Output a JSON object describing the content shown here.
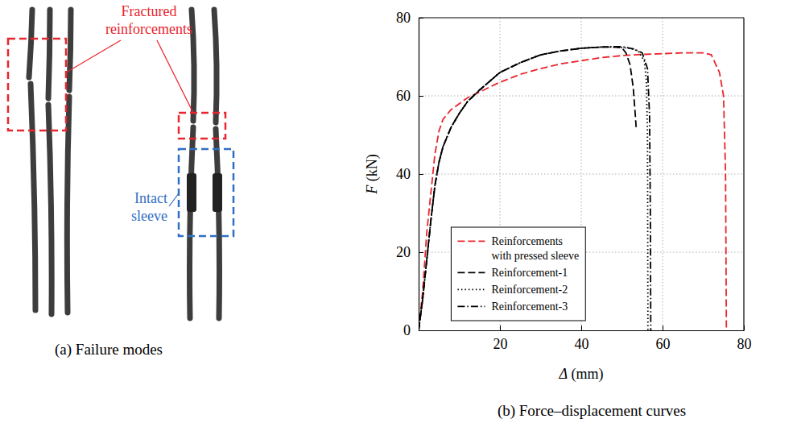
{
  "figure_a": {
    "annotations": [
      "Fractured reinforcements",
      "Intact sleeve"
    ],
    "caption": "(a) Failure modes"
  },
  "chart_data": {
    "type": "line",
    "title": "(b) Force–displacement curves",
    "x_label": "Δ (mm)",
    "y_label": "F (kN)",
    "xlim": [
      0,
      80
    ],
    "ylim": [
      0,
      80
    ],
    "xticks": [
      20,
      40,
      60,
      80
    ],
    "yticks": [
      0,
      20,
      40,
      60,
      80
    ],
    "grid": true,
    "legend": "lower left",
    "series": [
      {
        "name": "Reinforcements with pressed sleeve",
        "color": "#e8262d",
        "line_style": "dashed",
        "x": [
          0,
          1,
          2,
          3,
          4,
          5,
          6,
          8,
          10,
          12,
          15,
          20,
          25,
          30,
          35,
          40,
          45,
          50,
          55,
          60,
          65,
          70,
          72,
          74,
          75,
          75.5,
          75.7
        ],
        "values": [
          0,
          10,
          25,
          35,
          45,
          51,
          54,
          56.5,
          58,
          59.5,
          61,
          63.5,
          65.5,
          67,
          68.2,
          69,
          69.8,
          70.3,
          70.6,
          70.8,
          71,
          71,
          70.5,
          66,
          60,
          40,
          0
        ]
      },
      {
        "name": "Reinforcement-1",
        "color": "#000000",
        "line_style": "dashed",
        "x": [
          0,
          1,
          2,
          3,
          4,
          5,
          6,
          8,
          10,
          12,
          15,
          20,
          25,
          30,
          35,
          40,
          45,
          48,
          50,
          51,
          52,
          52.8,
          53.3,
          53.5
        ],
        "values": [
          0,
          8,
          18,
          28,
          37,
          43,
          47,
          52,
          55.5,
          58.5,
          61.5,
          66,
          68.5,
          70.5,
          71.5,
          72.2,
          72.5,
          72.5,
          72.3,
          71,
          68,
          62,
          55,
          52
        ]
      },
      {
        "name": "Reinforcement-2",
        "color": "#000000",
        "line_style": "dotted",
        "x": [
          0,
          1,
          2,
          3,
          4,
          5,
          6,
          8,
          10,
          12,
          15,
          20,
          25,
          30,
          35,
          40,
          45,
          48,
          52,
          54,
          55.5,
          56,
          56.3,
          56.4
        ],
        "values": [
          0,
          8,
          18,
          28,
          37,
          43,
          47,
          52,
          55.5,
          58.5,
          61.5,
          66,
          68.5,
          70.5,
          71.5,
          72.2,
          72.5,
          72.5,
          72.2,
          71.5,
          69,
          64,
          50,
          0
        ]
      },
      {
        "name": "Reinforcement-3",
        "color": "#000000",
        "line_style": "dashdot",
        "x": [
          0,
          1,
          2,
          3,
          4,
          5,
          6,
          8,
          10,
          12,
          15,
          20,
          25,
          30,
          35,
          40,
          45,
          48,
          50,
          53,
          55,
          56.3,
          56.8,
          57,
          57.1
        ],
        "values": [
          0,
          8,
          18,
          28,
          37,
          43,
          47,
          52,
          55.5,
          58.5,
          61.5,
          66,
          68.5,
          70.5,
          71.5,
          72.2,
          72.5,
          72.6,
          72.6,
          72,
          71,
          67,
          55,
          30,
          0
        ]
      }
    ]
  }
}
